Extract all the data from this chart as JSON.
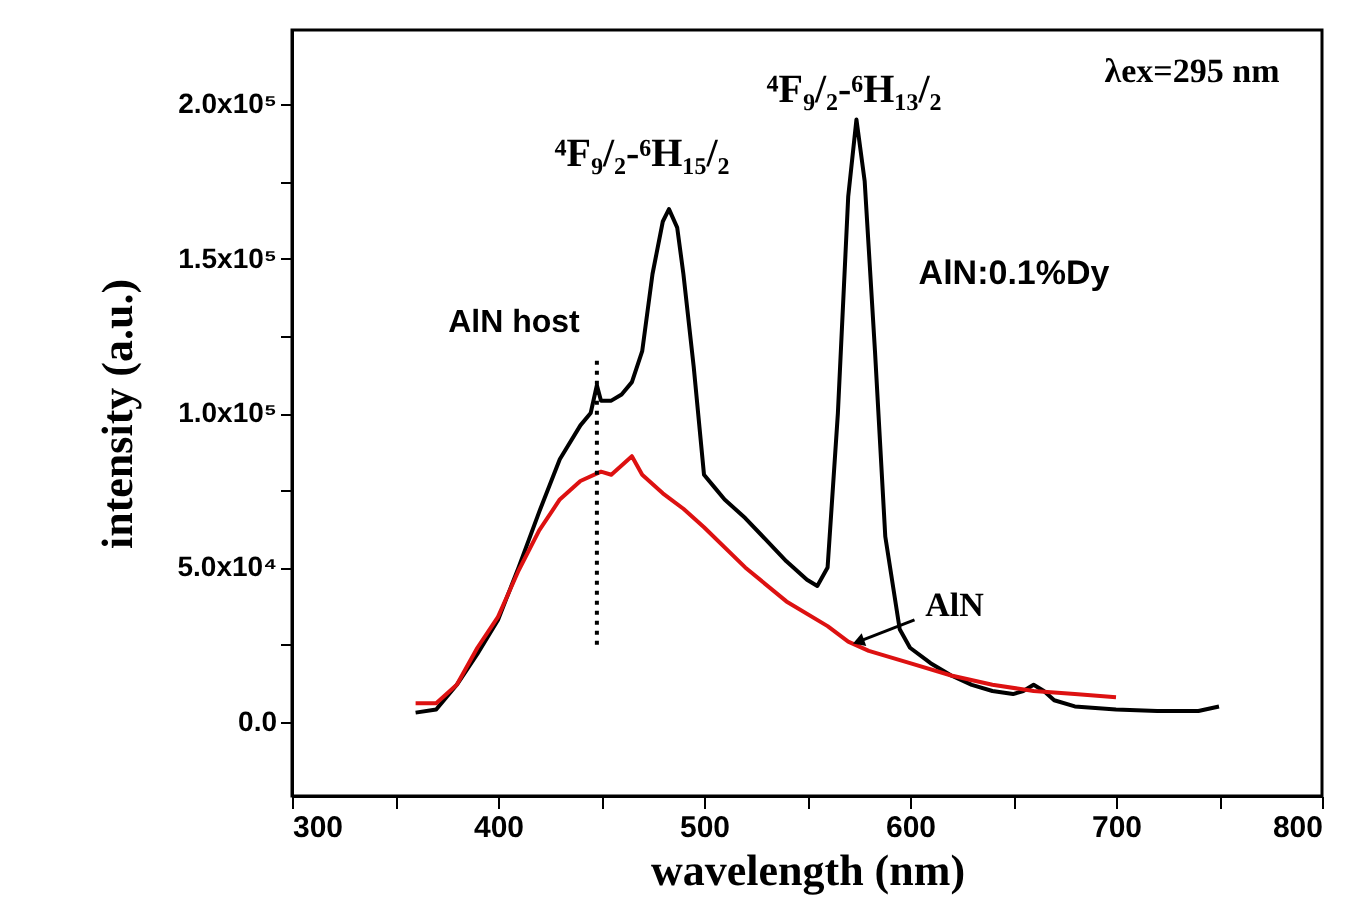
{
  "chart_data": {
    "type": "line",
    "xlabel": "wavelength (nm)",
    "ylabel": "intensity (a.u.)",
    "xlim": [
      300,
      800
    ],
    "xticks": [
      300,
      {
        "value": 350,
        "label": null
      },
      400,
      {
        "value": 450,
        "label": null
      },
      500,
      {
        "value": 550,
        "label": null
      },
      600,
      {
        "value": 650,
        "label": null
      },
      700,
      {
        "value": 750,
        "label": null
      },
      800
    ],
    "ylim": [
      -24000,
      224000
    ],
    "yticks": [
      {
        "value": 0,
        "label": "0.0"
      },
      {
        "value": 25000,
        "label": null
      },
      {
        "value": 50000,
        "label": "5.0x10⁴"
      },
      {
        "value": 75000,
        "label": null
      },
      {
        "value": 100000,
        "label": "1.0x10⁵"
      },
      {
        "value": 125000,
        "label": null
      },
      {
        "value": 150000,
        "label": "1.5x10⁵"
      },
      {
        "value": 175000,
        "label": null
      },
      {
        "value": 200000,
        "label": "2.0x10⁵"
      }
    ],
    "grid": false,
    "series": [
      {
        "color": "#000000",
        "x": [
          360,
          370,
          380,
          390,
          400,
          410,
          420,
          430,
          440,
          445,
          448,
          450,
          455,
          460,
          465,
          470,
          475,
          480,
          483,
          487,
          490,
          495,
          500,
          505,
          510,
          520,
          530,
          540,
          550,
          555,
          560,
          565,
          570,
          574,
          578,
          583,
          588,
          595,
          600,
          610,
          620,
          630,
          640,
          650,
          655,
          660,
          665,
          670,
          680,
          700,
          720,
          740,
          750
        ],
        "values": [
          3000,
          4000,
          12000,
          22000,
          33000,
          50000,
          68000,
          85000,
          96000,
          100000,
          109000,
          104000,
          104000,
          106000,
          110000,
          120000,
          145000,
          162000,
          166000,
          160000,
          145000,
          115000,
          80000,
          76000,
          72000,
          66000,
          59000,
          52000,
          46000,
          44000,
          50000,
          100000,
          170000,
          195000,
          175000,
          120000,
          60000,
          30000,
          24000,
          19000,
          15000,
          12000,
          10000,
          9000,
          10000,
          12000,
          10000,
          7000,
          5000,
          4000,
          3500,
          3500,
          5000
        ]
      },
      {
        "color": "#dd1111",
        "x": [
          360,
          370,
          380,
          390,
          400,
          410,
          420,
          430,
          440,
          450,
          455,
          460,
          465,
          470,
          480,
          490,
          500,
          520,
          540,
          560,
          570,
          580,
          600,
          620,
          640,
          660,
          680,
          700
        ],
        "values": [
          6000,
          6000,
          12000,
          24000,
          34000,
          49000,
          62000,
          72000,
          78000,
          81000,
          80000,
          83000,
          86000,
          80000,
          74000,
          69000,
          63000,
          50000,
          39000,
          31000,
          26000,
          23000,
          19000,
          15000,
          12000,
          10000,
          9000,
          8000
        ]
      },
      {
        "type": "line",
        "color": "#000000",
        "line_style": "dotted",
        "x": [
          448,
          448
        ],
        "values": [
          25000,
          117000
        ]
      }
    ],
    "annotations": [
      "λex=295 nm",
      "⁴F₉/₂-⁶H₁₃/₂",
      "⁴F₉/₂-⁶H₁₅/₂",
      "AlN host",
      "AlN:0.1%Dy",
      {
        "text": "AlN",
        "x": 575,
        "y": 26000
      }
    ]
  }
}
